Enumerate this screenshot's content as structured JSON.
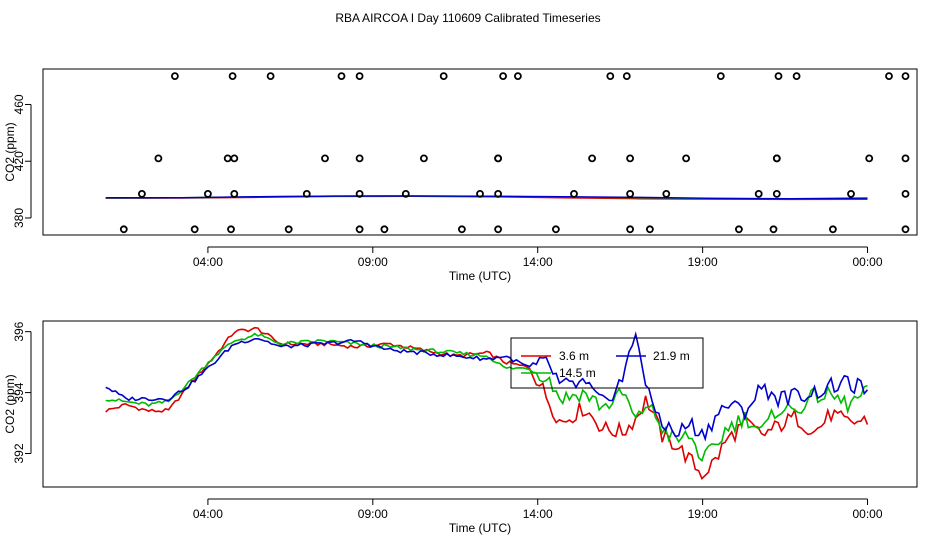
{
  "title": "RBA AIRCOA I  Day 110609  Calibrated Timeseries",
  "chart_data": [
    {
      "type": "scatter",
      "xlabel": "Time (UTC)",
      "ylabel": "CO2 (ppm)",
      "x_ticks": [
        {
          "v": 4,
          "label": "04:00"
        },
        {
          "v": 9,
          "label": "09:00"
        },
        {
          "v": 14,
          "label": "14:00"
        },
        {
          "v": 19,
          "label": "19:00"
        },
        {
          "v": 24,
          "label": "00:00"
        }
      ],
      "y_ticks": [
        380,
        420,
        460
      ],
      "xlim": [
        -1,
        25.5
      ],
      "ylim": [
        368,
        485
      ],
      "markers": [
        {
          "x": 1.45,
          "y": 372
        },
        {
          "x": 2.0,
          "y": 397
        },
        {
          "x": 2.5,
          "y": 422
        },
        {
          "x": 3.0,
          "y": 480
        },
        {
          "x": 3.6,
          "y": 372
        },
        {
          "x": 4.0,
          "y": 397
        },
        {
          "x": 4.6,
          "y": 422
        },
        {
          "x": 4.75,
          "y": 480
        },
        {
          "x": 4.7,
          "y": 372
        },
        {
          "x": 4.8,
          "y": 397
        },
        {
          "x": 4.8,
          "y": 422
        },
        {
          "x": 5.9,
          "y": 480
        },
        {
          "x": 6.45,
          "y": 372
        },
        {
          "x": 7.0,
          "y": 397
        },
        {
          "x": 7.55,
          "y": 422
        },
        {
          "x": 8.05,
          "y": 480
        },
        {
          "x": 8.6,
          "y": 372
        },
        {
          "x": 8.6,
          "y": 397
        },
        {
          "x": 8.6,
          "y": 422
        },
        {
          "x": 8.6,
          "y": 480
        },
        {
          "x": 9.35,
          "y": 372
        },
        {
          "x": 10.0,
          "y": 397
        },
        {
          "x": 10.55,
          "y": 422
        },
        {
          "x": 11.15,
          "y": 480
        },
        {
          "x": 11.7,
          "y": 372
        },
        {
          "x": 12.25,
          "y": 397
        },
        {
          "x": 12.8,
          "y": 422
        },
        {
          "x": 13.4,
          "y": 480
        },
        {
          "x": 12.8,
          "y": 372
        },
        {
          "x": 12.8,
          "y": 397
        },
        {
          "x": 12.8,
          "y": 422
        },
        {
          "x": 12.95,
          "y": 480
        },
        {
          "x": 14.55,
          "y": 372
        },
        {
          "x": 15.1,
          "y": 397
        },
        {
          "x": 15.65,
          "y": 422
        },
        {
          "x": 16.2,
          "y": 480
        },
        {
          "x": 16.8,
          "y": 372
        },
        {
          "x": 16.8,
          "y": 397
        },
        {
          "x": 16.8,
          "y": 422
        },
        {
          "x": 16.7,
          "y": 480
        },
        {
          "x": 17.4,
          "y": 372
        },
        {
          "x": 17.9,
          "y": 397
        },
        {
          "x": 18.5,
          "y": 422
        },
        {
          "x": 19.55,
          "y": 480
        },
        {
          "x": 20.1,
          "y": 372
        },
        {
          "x": 20.7,
          "y": 397
        },
        {
          "x": 21.25,
          "y": 422
        },
        {
          "x": 21.85,
          "y": 480
        },
        {
          "x": 21.15,
          "y": 372
        },
        {
          "x": 21.25,
          "y": 397
        },
        {
          "x": 21.25,
          "y": 422
        },
        {
          "x": 21.3,
          "y": 480
        },
        {
          "x": 22.95,
          "y": 372
        },
        {
          "x": 23.5,
          "y": 397
        },
        {
          "x": 24.05,
          "y": 422
        },
        {
          "x": 24.65,
          "y": 480
        },
        {
          "x": 25.15,
          "y": 372
        },
        {
          "x": 25.15,
          "y": 397
        },
        {
          "x": 25.15,
          "y": 422
        },
        {
          "x": 25.15,
          "y": 480
        }
      ],
      "lines": [
        {
          "color": "#dd0000",
          "y": [
            394.0,
            394.1,
            394.6,
            395.2,
            395.3,
            395.0,
            394.2,
            393.6,
            393.3,
            393.1,
            393.2
          ]
        },
        {
          "color": "#00bb00",
          "y": [
            394.1,
            394.2,
            394.9,
            395.4,
            395.5,
            395.2,
            394.8,
            394.3,
            393.7,
            393.4,
            393.8
          ]
        },
        {
          "color": "#0000cc",
          "y": [
            394.2,
            394.3,
            395.0,
            395.4,
            395.5,
            395.3,
            395.0,
            394.5,
            393.8,
            393.6,
            394.0
          ]
        }
      ]
    },
    {
      "type": "line",
      "xlabel": "Time (UTC)",
      "ylabel": "CO2 (ppm)",
      "x_ticks": [
        {
          "v": 4,
          "label": "04:00"
        },
        {
          "v": 9,
          "label": "09:00"
        },
        {
          "v": 14,
          "label": "14:00"
        },
        {
          "v": 19,
          "label": "19:00"
        },
        {
          "v": 24,
          "label": "00:00"
        }
      ],
      "y_ticks": [
        392,
        394,
        396
      ],
      "xlim": [
        -1,
        25.5
      ],
      "ylim": [
        390.9,
        396.35
      ],
      "x_start": 0.9,
      "x_end": 24.0,
      "legend_position": "top-right",
      "series": [
        {
          "name": "3.6 m",
          "color": "#dd0000",
          "keys": [
            [
              0.9,
              393.4
            ],
            [
              1.5,
              393.6
            ],
            [
              2.2,
              393.4
            ],
            [
              2.8,
              393.4
            ],
            [
              3.4,
              394.2
            ],
            [
              4.2,
              395.2
            ],
            [
              4.8,
              396.0
            ],
            [
              5.5,
              396.1
            ],
            [
              6.2,
              395.6
            ],
            [
              7.5,
              395.6
            ],
            [
              8.5,
              395.5
            ],
            [
              9.5,
              395.6
            ],
            [
              10.5,
              395.4
            ],
            [
              11.5,
              395.2
            ],
            [
              12.5,
              395.3
            ],
            [
              13.0,
              395.0
            ],
            [
              13.8,
              394.8
            ],
            [
              14.3,
              393.8
            ],
            [
              14.7,
              393.0
            ],
            [
              15.4,
              393.5
            ],
            [
              16.0,
              392.8
            ],
            [
              16.6,
              392.7
            ],
            [
              17.0,
              393.2
            ],
            [
              17.3,
              393.8
            ],
            [
              17.8,
              392.5
            ],
            [
              18.2,
              392.3
            ],
            [
              18.6,
              391.8
            ],
            [
              19.0,
              391.3
            ],
            [
              19.4,
              391.8
            ],
            [
              19.7,
              392.4
            ],
            [
              20.3,
              393.0
            ],
            [
              20.8,
              392.6
            ],
            [
              21.3,
              392.9
            ],
            [
              21.8,
              393.2
            ],
            [
              22.4,
              392.7
            ],
            [
              22.9,
              393.3
            ],
            [
              23.4,
              393.0
            ],
            [
              24.0,
              393.1
            ]
          ]
        },
        {
          "name": "14.5 m",
          "color": "#00bb00",
          "keys": [
            [
              0.9,
              393.8
            ],
            [
              1.5,
              393.7
            ],
            [
              2.2,
              393.6
            ],
            [
              2.8,
              393.7
            ],
            [
              3.4,
              394.3
            ],
            [
              4.2,
              395.2
            ],
            [
              4.8,
              395.7
            ],
            [
              5.5,
              395.9
            ],
            [
              6.2,
              395.6
            ],
            [
              7.5,
              395.7
            ],
            [
              8.5,
              395.6
            ],
            [
              9.5,
              395.5
            ],
            [
              10.5,
              395.4
            ],
            [
              11.5,
              395.3
            ],
            [
              12.5,
              395.2
            ],
            [
              13.0,
              394.8
            ],
            [
              13.8,
              394.8
            ],
            [
              14.3,
              394.5
            ],
            [
              14.7,
              393.8
            ],
            [
              15.4,
              394.0
            ],
            [
              16.0,
              393.5
            ],
            [
              16.6,
              394.0
            ],
            [
              17.0,
              393.0
            ],
            [
              17.3,
              393.7
            ],
            [
              17.8,
              392.8
            ],
            [
              18.2,
              392.4
            ],
            [
              18.6,
              392.6
            ],
            [
              19.0,
              391.8
            ],
            [
              19.4,
              392.2
            ],
            [
              19.7,
              392.8
            ],
            [
              20.3,
              393.2
            ],
            [
              20.8,
              392.7
            ],
            [
              21.3,
              393.5
            ],
            [
              21.8,
              393.4
            ],
            [
              22.4,
              393.9
            ],
            [
              22.9,
              393.9
            ],
            [
              23.4,
              393.6
            ],
            [
              24.0,
              394.0
            ]
          ]
        },
        {
          "name": "21.9 m",
          "color": "#0000cc",
          "keys": [
            [
              0.9,
              394.2
            ],
            [
              1.5,
              393.8
            ],
            [
              2.2,
              393.8
            ],
            [
              2.8,
              393.8
            ],
            [
              3.4,
              394.2
            ],
            [
              4.2,
              395.0
            ],
            [
              4.8,
              395.6
            ],
            [
              5.5,
              395.8
            ],
            [
              6.2,
              395.5
            ],
            [
              7.5,
              395.6
            ],
            [
              8.5,
              395.7
            ],
            [
              9.5,
              395.4
            ],
            [
              10.5,
              395.3
            ],
            [
              11.5,
              395.2
            ],
            [
              12.5,
              395.1
            ],
            [
              13.0,
              395.2
            ],
            [
              13.8,
              394.8
            ],
            [
              14.3,
              395.0
            ],
            [
              14.7,
              394.2
            ],
            [
              15.4,
              394.3
            ],
            [
              16.0,
              393.6
            ],
            [
              16.6,
              394.5
            ],
            [
              17.0,
              396.1
            ],
            [
              17.3,
              394.0
            ],
            [
              17.8,
              393.0
            ],
            [
              18.2,
              392.6
            ],
            [
              18.6,
              393.0
            ],
            [
              19.0,
              392.6
            ],
            [
              19.4,
              393.2
            ],
            [
              19.7,
              393.6
            ],
            [
              20.3,
              393.4
            ],
            [
              20.8,
              394.2
            ],
            [
              21.3,
              393.8
            ],
            [
              21.8,
              393.9
            ],
            [
              22.4,
              394.0
            ],
            [
              22.9,
              394.2
            ],
            [
              23.4,
              394.3
            ],
            [
              24.0,
              394.1
            ]
          ]
        }
      ]
    }
  ]
}
